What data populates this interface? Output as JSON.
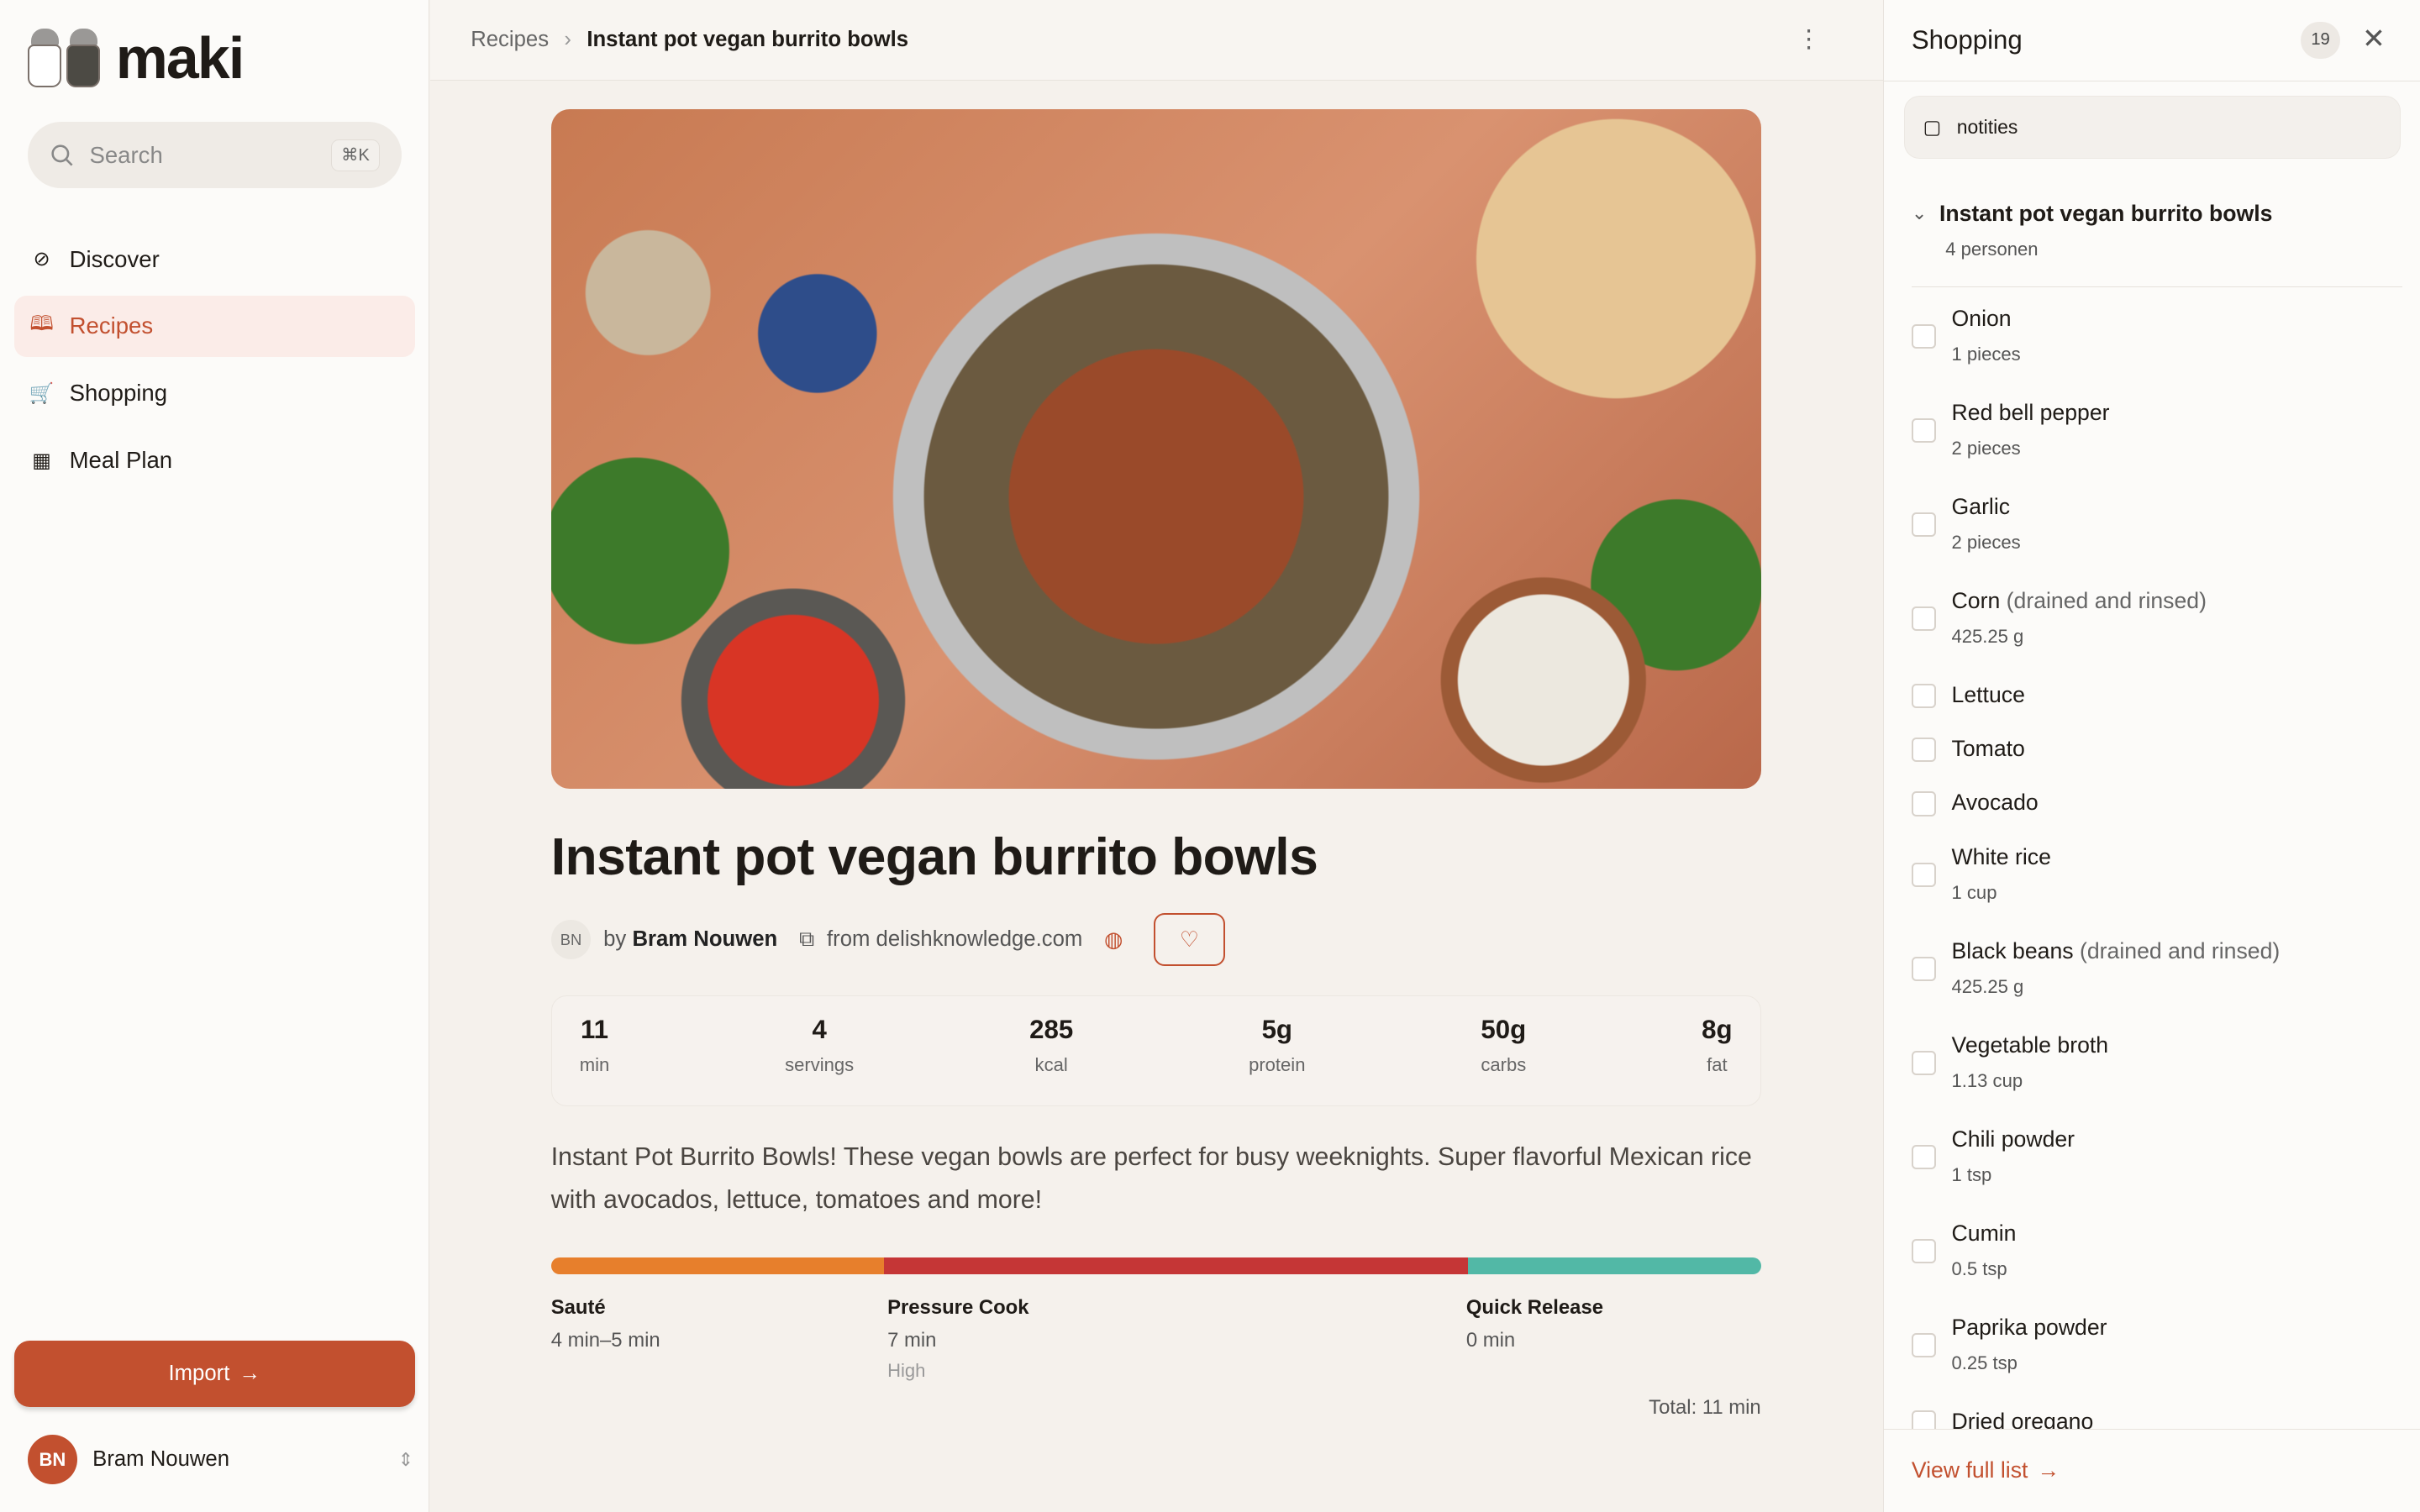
{
  "app": {
    "name": "maki"
  },
  "search": {
    "placeholder": "Search",
    "shortcut": "⌘K"
  },
  "nav": [
    {
      "label": "Discover",
      "icon": "compass-icon"
    },
    {
      "label": "Recipes",
      "icon": "book-icon",
      "active": true
    },
    {
      "label": "Shopping",
      "icon": "cart-icon"
    },
    {
      "label": "Meal Plan",
      "icon": "calendar-icon"
    }
  ],
  "import_label": "Import",
  "user": {
    "initials": "BN",
    "name": "Bram Nouwen"
  },
  "breadcrumb": {
    "parent": "Recipes",
    "current": "Instant pot vegan burrito bowls"
  },
  "recipe": {
    "title": "Instant pot vegan burrito bowls",
    "author_initials": "BN",
    "by": "by",
    "author": "Bram Nouwen",
    "source": "from delishknowledge.com",
    "stats": [
      {
        "value": "11",
        "unit": "min"
      },
      {
        "value": "4",
        "unit": "servings"
      },
      {
        "value": "285",
        "unit": "kcal"
      },
      {
        "value": "5g",
        "unit": "protein"
      },
      {
        "value": "50g",
        "unit": "carbs"
      },
      {
        "value": "8g",
        "unit": "fat"
      }
    ],
    "description": "Instant Pot Burrito Bowls! These vegan bowls are perfect for busy weeknights. Super flavorful Mexican rice with avocados, lettuce, tomatoes and more!",
    "phases": [
      {
        "name": "Sauté",
        "duration": "4 min–5 min",
        "color": "#e77f2c"
      },
      {
        "name": "Pressure Cook",
        "duration": "7 min",
        "extra": "High",
        "color": "#c53636"
      },
      {
        "name": "Quick Release",
        "duration": "0 min",
        "color": "#52b8a6"
      }
    ],
    "total": "Total: 11 min"
  },
  "shopping": {
    "title": "Shopping",
    "count": "19",
    "notes": "notities",
    "group": {
      "title": "Instant pot vegan burrito bowls",
      "servings": "4 personen"
    },
    "items": [
      {
        "name": "Onion",
        "qty": "1 pieces"
      },
      {
        "name": "Red bell pepper",
        "qty": "2 pieces"
      },
      {
        "name": "Garlic",
        "qty": "2 pieces"
      },
      {
        "name": "Corn",
        "note": "(drained and rinsed)",
        "qty": "425.25 g"
      },
      {
        "name": "Lettuce"
      },
      {
        "name": "Tomato"
      },
      {
        "name": "Avocado"
      },
      {
        "name": "White rice",
        "qty": "1 cup"
      },
      {
        "name": "Black beans",
        "note": "(drained and rinsed)",
        "qty": "425.25 g"
      },
      {
        "name": "Vegetable broth",
        "qty": "1.13 cup"
      },
      {
        "name": "Chili powder",
        "qty": "1 tsp"
      },
      {
        "name": "Cumin",
        "qty": "0.5 tsp"
      },
      {
        "name": "Paprika powder",
        "qty": "0.25 tsp"
      },
      {
        "name": "Dried oregano"
      }
    ],
    "view_full": "View full list"
  },
  "colors": {
    "accent": "#c2502f"
  }
}
